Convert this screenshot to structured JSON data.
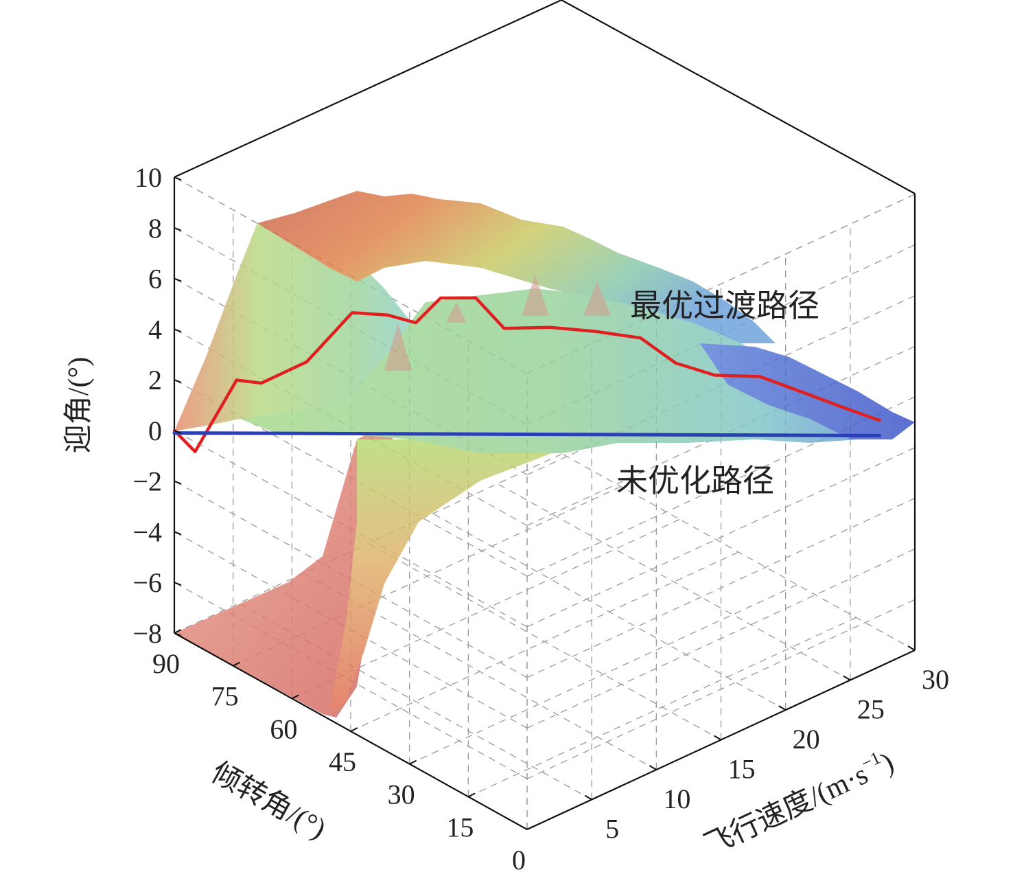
{
  "chart_data": {
    "type": "surface3d",
    "title": "",
    "zlabel": "迎角/(°)",
    "ylabel": "倾转角/(°)",
    "xlabel": "飞行速度/(m·s",
    "xlabel_sup": "−1",
    "xlabel_close": ")",
    "zticks": [
      10,
      8,
      6,
      4,
      2,
      0,
      -2,
      -4,
      -6,
      -8
    ],
    "ztick_labels": [
      "10",
      "8",
      "6",
      "4",
      "2",
      "0",
      "−2",
      "−4",
      "−6",
      "−8"
    ],
    "yticks": [
      90,
      75,
      60,
      45,
      30,
      15,
      0
    ],
    "ytick_labels": [
      "90",
      "75",
      "60",
      "45",
      "30",
      "15",
      "0"
    ],
    "xticks": [
      5,
      10,
      15,
      20,
      25,
      30
    ],
    "xtick_labels": [
      "5",
      "10",
      "15",
      "20",
      "25",
      "30"
    ],
    "xlim": [
      0,
      30
    ],
    "ylim": [
      0,
      90
    ],
    "zlim": [
      -8,
      10
    ],
    "grid": true,
    "colormap": "jet (transparent surface)",
    "series": [
      {
        "name": "最优过渡路径",
        "color": "#e02020",
        "points": [
          [
            0,
            90,
            0.0
          ],
          [
            1,
            88,
            -0.9
          ],
          [
            3,
            84,
            1.8
          ],
          [
            4,
            81,
            1.7
          ],
          [
            6,
            76,
            2.5
          ],
          [
            8,
            71,
            4.4
          ],
          [
            9.5,
            67,
            4.3
          ],
          [
            10.5,
            63,
            4.1
          ],
          [
            11.5,
            60,
            5.1
          ],
          [
            13,
            56,
            5.1
          ],
          [
            14,
            52,
            4.0
          ],
          [
            16,
            47,
            4.0
          ],
          [
            18,
            42,
            3.8
          ],
          [
            20,
            37,
            3.5
          ],
          [
            21.5,
            33,
            2.5
          ],
          [
            23,
            28,
            2.1
          ],
          [
            25,
            23,
            2.0
          ],
          [
            27,
            18,
            1.3
          ],
          [
            28.5,
            13,
            0.8
          ],
          [
            30,
            9,
            0.3
          ]
        ]
      },
      {
        "name": "未优化路径",
        "color": "#2a3fb5",
        "points": [
          [
            0,
            90,
            -0.1
          ],
          [
            30,
            9,
            -0.3
          ]
        ]
      }
    ],
    "annotations": [
      "最优过渡路径",
      "未优化路径"
    ]
  }
}
